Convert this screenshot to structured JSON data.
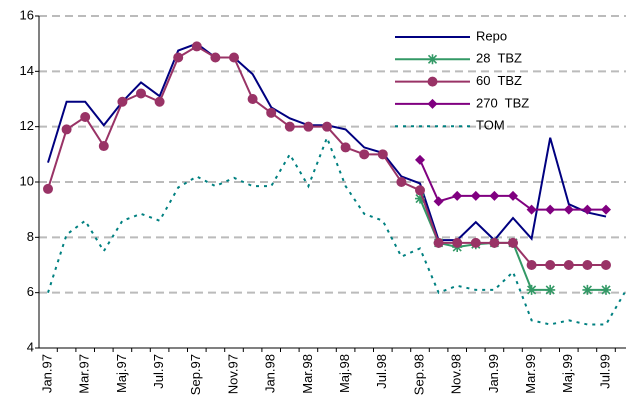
{
  "chart_data": {
    "type": "line",
    "categories": [
      "Jan.97",
      null,
      "Mar.97",
      null,
      "Maj.97",
      null,
      "Jul.97",
      null,
      "Sep.97",
      null,
      "Nov.97",
      null,
      "Jan.98",
      null,
      "Mar.98",
      null,
      "Maj.98",
      null,
      "Jul.98",
      null,
      "Sep.98",
      null,
      "Nov.98",
      null,
      "Jan.99",
      null,
      "Mar.99",
      null,
      "Maj.99",
      null,
      "Jul.99",
      null
    ],
    "series": [
      {
        "name": "Repo",
        "color": "#000080",
        "marker": "none",
        "dash": false,
        "values": [
          10.7,
          12.9,
          12.9,
          12.05,
          12.9,
          13.6,
          13.1,
          14.75,
          15.0,
          14.5,
          14.5,
          13.9,
          12.7,
          12.3,
          12.05,
          12.05,
          11.9,
          11.25,
          11.05,
          10.2,
          9.95,
          7.9,
          7.9,
          8.55,
          7.9,
          8.7,
          7.95,
          11.6,
          9.2,
          8.9,
          8.75,
          null
        ]
      },
      {
        "name": "28  TBZ",
        "color": "#339966",
        "marker": "asterisk",
        "dash": false,
        "values": [
          null,
          null,
          null,
          null,
          null,
          null,
          null,
          null,
          null,
          null,
          null,
          null,
          null,
          null,
          null,
          null,
          null,
          null,
          null,
          null,
          9.4,
          7.8,
          7.65,
          7.75,
          7.8,
          7.8,
          6.1,
          6.1,
          null,
          6.1,
          6.1,
          null
        ]
      },
      {
        "name": "60  TBZ",
        "color": "#993366",
        "marker": "circle",
        "dash": false,
        "values": [
          9.75,
          11.9,
          12.35,
          11.3,
          12.9,
          13.2,
          12.9,
          14.5,
          14.9,
          14.5,
          14.5,
          13.0,
          12.5,
          12.0,
          12.0,
          12.0,
          11.25,
          11.0,
          11.0,
          10.0,
          9.7,
          7.8,
          7.8,
          7.8,
          7.8,
          7.8,
          7.0,
          7.0,
          7.0,
          7.0,
          7.0,
          null
        ]
      },
      {
        "name": "270  TBZ",
        "color": "#800080",
        "marker": "diamond",
        "dash": false,
        "values": [
          null,
          null,
          null,
          null,
          null,
          null,
          null,
          null,
          null,
          null,
          null,
          null,
          null,
          null,
          null,
          null,
          null,
          null,
          null,
          null,
          10.8,
          9.3,
          9.5,
          9.5,
          9.5,
          9.5,
          9.0,
          9.0,
          9.0,
          9.0,
          9.0,
          null
        ]
      },
      {
        "name": "TOM",
        "color": "#008080",
        "marker": "none",
        "dash": true,
        "values": [
          6.0,
          8.1,
          8.6,
          7.5,
          8.6,
          8.85,
          8.6,
          9.8,
          10.2,
          9.85,
          10.15,
          9.85,
          9.85,
          11.0,
          9.85,
          11.6,
          9.85,
          8.85,
          8.6,
          7.3,
          7.6,
          6.0,
          6.25,
          6.1,
          6.1,
          6.75,
          5.0,
          4.85,
          5.0,
          4.85,
          4.85,
          6.0
        ]
      }
    ],
    "ylim": [
      4,
      16
    ],
    "yticks": [
      4,
      6,
      8,
      10,
      12,
      14,
      16
    ],
    "grid": true,
    "legend": "top-right"
  }
}
